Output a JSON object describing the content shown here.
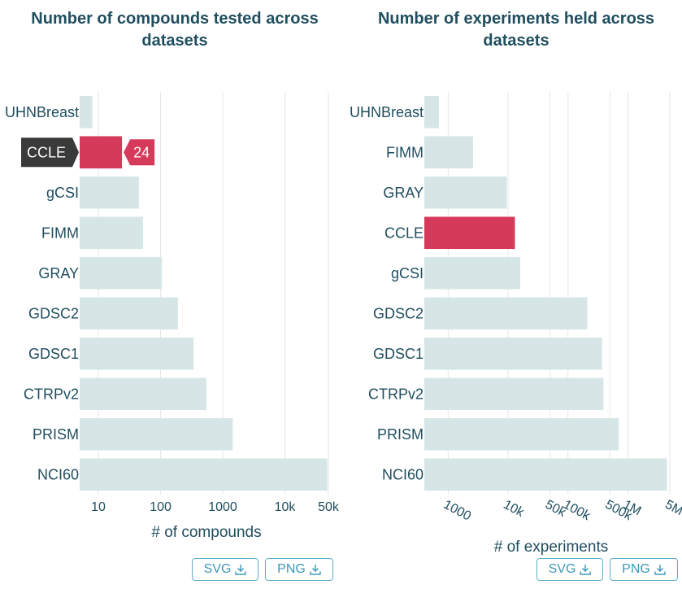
{
  "colors": {
    "bar": "#d6e6e6",
    "highlight": "#d63a5a",
    "grid": "#e6e6e6",
    "text": "#1f4e5f",
    "tooltip_dark": "#3a3a3a",
    "button": "#3c98b9"
  },
  "chart_data": [
    {
      "type": "bar",
      "orientation": "horizontal",
      "title": "Number of compounds tested across datasets",
      "xlabel": "# of compounds",
      "xscale": "log",
      "xlim": [
        5,
        50000
      ],
      "tick_values": [
        10,
        100,
        1000,
        10000,
        50000
      ],
      "tick_labels": [
        "10",
        "100",
        "1000",
        "10k",
        "50k"
      ],
      "categories": [
        "UHNBreast",
        "CCLE",
        "gCSI",
        "FIMM",
        "GRAY",
        "GDSC2",
        "GDSC1",
        "CTRPv2",
        "PRISM",
        "NCI60"
      ],
      "values": [
        8,
        24,
        45,
        52,
        105,
        190,
        340,
        545,
        1450,
        48000
      ],
      "highlighted": "CCLE",
      "tooltip": {
        "category": "CCLE",
        "value": "24"
      },
      "grid": true
    },
    {
      "type": "bar",
      "orientation": "horizontal",
      "title": "Number of experiments held across datasets",
      "xlabel": "# of experiments",
      "xscale": "log",
      "xlim": [
        400,
        5000000
      ],
      "tick_values": [
        1000,
        10000,
        50000,
        100000,
        500000,
        1000000,
        5000000
      ],
      "tick_labels": [
        "1000",
        "10k",
        "50k",
        "100k",
        "500k",
        "1M",
        "5M"
      ],
      "categories": [
        "UHNBreast",
        "FIMM",
        "GRAY",
        "CCLE",
        "gCSI",
        "GDSC2",
        "GDSC1",
        "CTRPv2",
        "PRISM",
        "NCI60"
      ],
      "values": [
        700,
        2600,
        9500,
        13000,
        16000,
        210000,
        370000,
        390000,
        700000,
        4500000
      ],
      "highlighted": "CCLE",
      "grid": true
    }
  ],
  "buttons": {
    "svg_label": "SVG",
    "png_label": "PNG"
  }
}
